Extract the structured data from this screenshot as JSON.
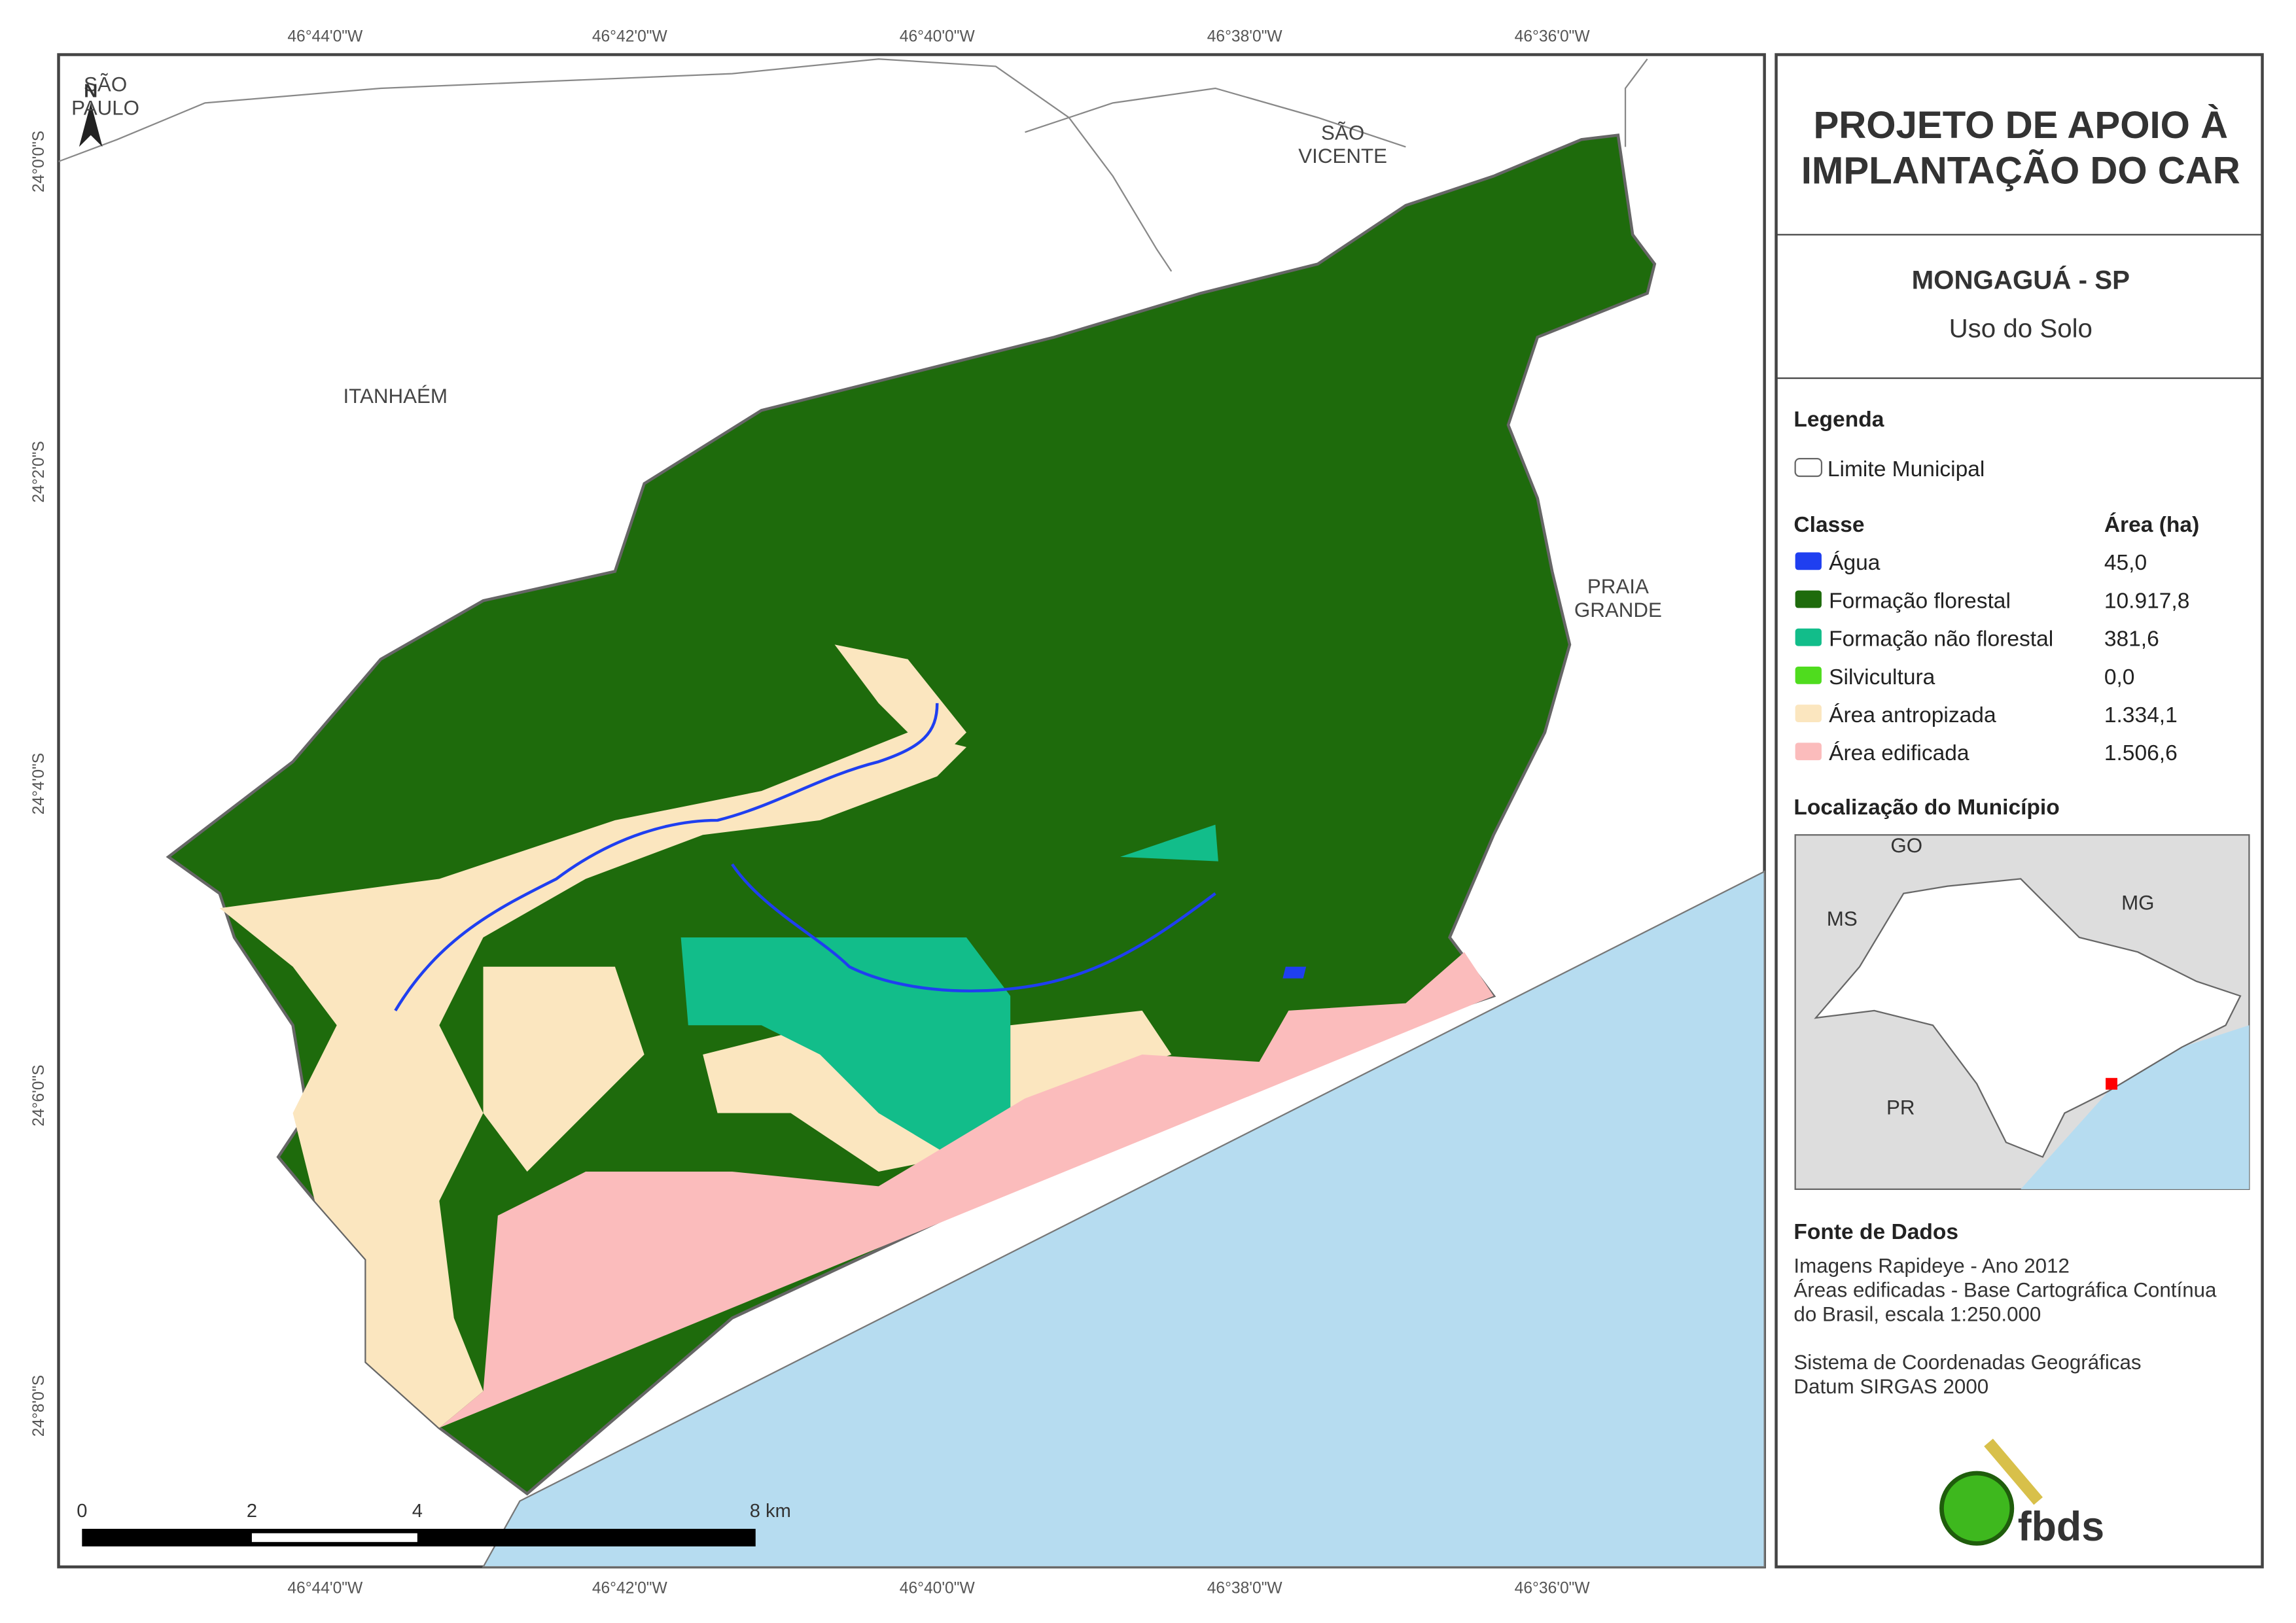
{
  "map": {
    "top_ticks": [
      "46°44'0\"W",
      "46°42'0\"W",
      "46°40'0\"W",
      "46°38'0\"W",
      "46°36'0\"W"
    ],
    "bottom_ticks": [
      "46°44'0\"W",
      "46°42'0\"W",
      "46°40'0\"W",
      "46°38'0\"W",
      "46°36'0\"W"
    ],
    "left_ticks": [
      "24°0'0\"S",
      "24°2'0\"S",
      "24°4'0\"S",
      "24°6'0\"S",
      "24°8'0\"S"
    ],
    "places": [
      {
        "lines": [
          "SÃO",
          "PAULO"
        ]
      },
      {
        "lines": [
          "SÃO",
          "VICENTE"
        ]
      },
      {
        "lines": [
          "ITANHAÉM"
        ]
      },
      {
        "lines": [
          "PRAIA",
          "GRANDE"
        ]
      }
    ],
    "north": "N",
    "scale": [
      "0",
      "2",
      "4",
      "8 km"
    ]
  },
  "panel": {
    "title_lines": [
      "PROJETO DE APOIO À",
      "IMPLANTAÇÃO DO CAR"
    ],
    "municipality": "MONGAGUÁ - SP",
    "subtitle": "Uso do Solo",
    "legend_title": "Legenda",
    "boundary": "Limite Municipal",
    "class_header": "Classe",
    "area_header": "Área (ha)",
    "classes": [
      {
        "name": "Água",
        "color": "#1f3ff0",
        "area": "45,0"
      },
      {
        "name": "Formação florestal",
        "color": "#1e6b0c",
        "area": "10.917,8"
      },
      {
        "name": "Formação não florestal",
        "color": "#12bd8a",
        "area": "381,6"
      },
      {
        "name": "Silvicultura",
        "color": "#4fdc1e",
        "area": "0,0"
      },
      {
        "name": "Área antropizada",
        "color": "#fbe6bf",
        "area": "1.334,1"
      },
      {
        "name": "Área edificada",
        "color": "#fbbcbc",
        "area": "1.506,6"
      }
    ],
    "location_title": "Localização do Município",
    "inset_labels": [
      "GO",
      "MS",
      "MG",
      "PR"
    ],
    "sources_title": "Fonte de Dados",
    "sources": [
      "Imagens Rapideye - Ano 2012",
      "Áreas edificadas - Base Cartográfica Contínua",
      "do Brasil, escala 1:250.000",
      "",
      "Sistema de Coordenadas Geográficas",
      "Datum SIRGAS 2000"
    ],
    "logo": "fbds"
  }
}
